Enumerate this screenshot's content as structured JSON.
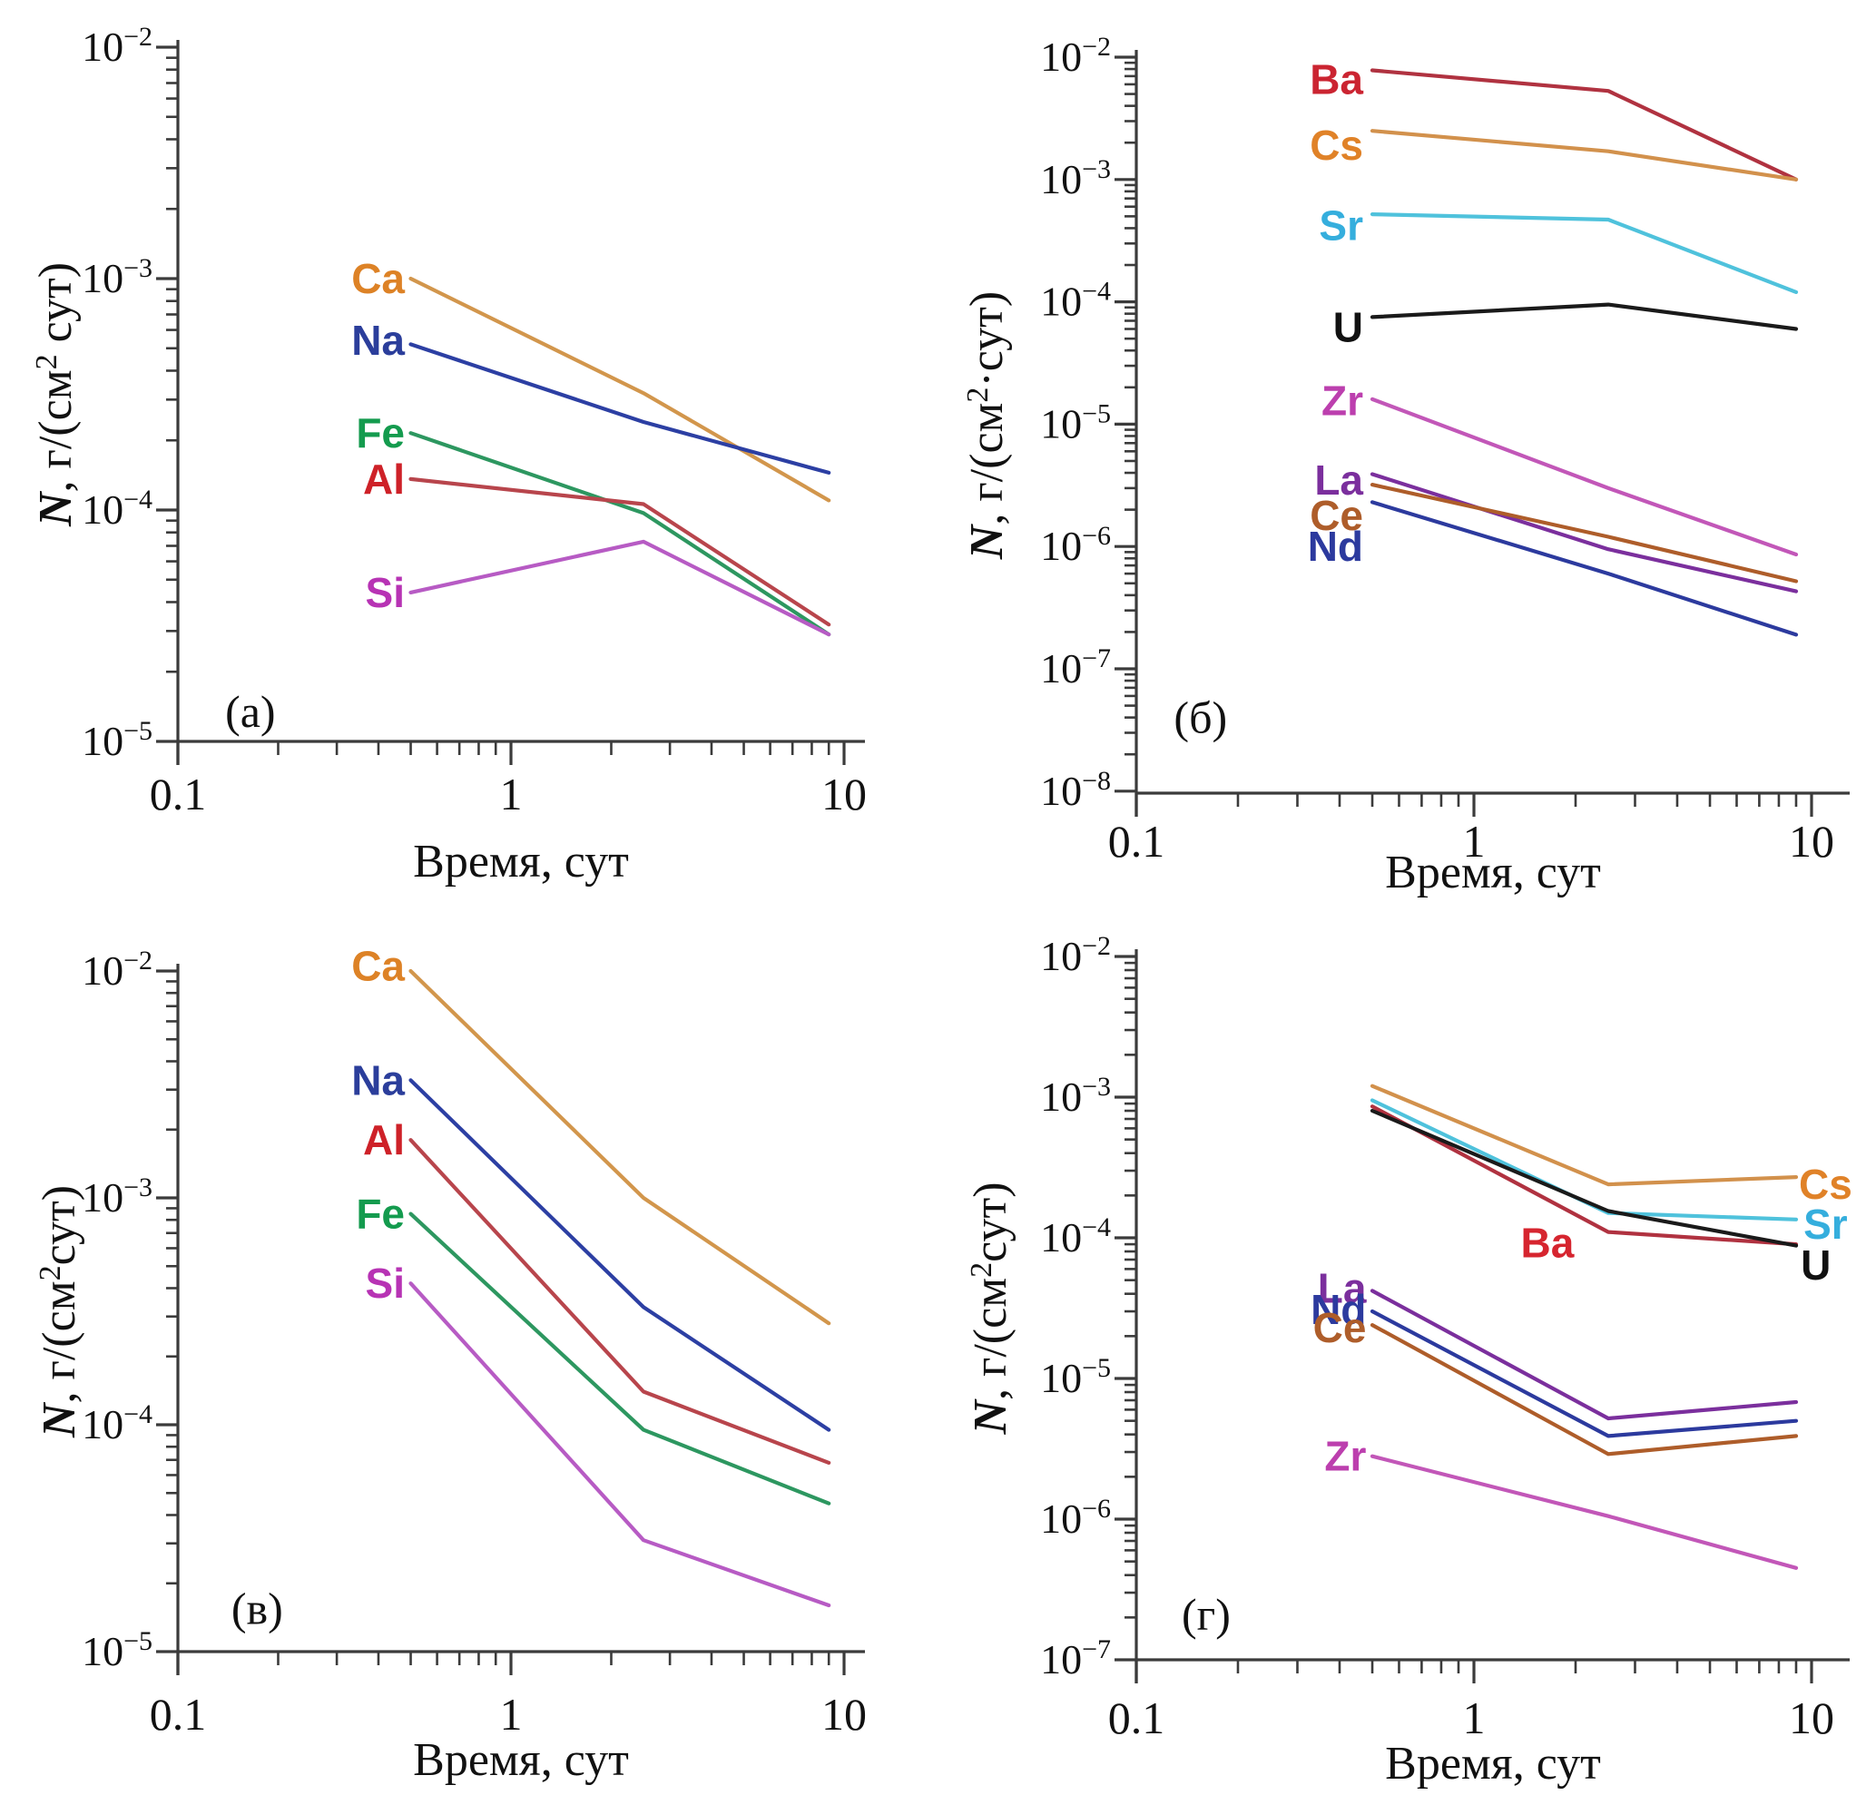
{
  "figure": {
    "background": "#ffffff"
  },
  "chart_data": [
    {
      "type": "line",
      "panel_letter": "(а)",
      "letter_pos": {
        "x": 0.165,
        "y": 1.35e-05
      },
      "xlabel": "Время, сут",
      "ylabel": {
        "lead_italic": "N",
        "mid": ", г/(см",
        "sup": "2",
        "tail": " сут)"
      },
      "x_scale": "log",
      "y_scale": "log",
      "xlim": [
        0.1,
        10
      ],
      "ylim": [
        1e-05,
        0.01
      ],
      "y_top_exp": -2,
      "x_ticks": [
        {
          "v": 0.1,
          "label": "0.1"
        },
        {
          "v": 1,
          "label": "1"
        },
        {
          "v": 10,
          "label": "10"
        }
      ],
      "y_ticks": [
        "10^−2",
        "10^−3",
        "10^−4",
        "10^−5"
      ],
      "x": [
        0.5,
        2.5,
        9
      ],
      "series": [
        {
          "name": "Ca",
          "color": "#D2964C",
          "label_color": "#DD8226",
          "values": [
            0.001,
            0.00032,
            0.00011
          ],
          "label": {
            "x": 0.48,
            "y": 0.001,
            "anchor": "end"
          }
        },
        {
          "name": "Na",
          "color": "#2C3FA3",
          "label_color": "#2B3E9B",
          "values": [
            0.00052,
            0.00024,
            0.000145
          ],
          "label": {
            "x": 0.48,
            "y": 0.00054,
            "anchor": "end"
          }
        },
        {
          "name": "Fe",
          "color": "#2D9760",
          "label_color": "#149B4E",
          "values": [
            0.000215,
            9.7e-05,
            2.9e-05
          ],
          "label": {
            "x": 0.48,
            "y": 0.000215,
            "anchor": "end"
          }
        },
        {
          "name": "Al",
          "color": "#B8454C",
          "label_color": "#CE2128",
          "values": [
            0.000136,
            0.000106,
            3.2e-05
          ],
          "label": {
            "x": 0.48,
            "y": 0.000136,
            "anchor": "end"
          }
        },
        {
          "name": "Si",
          "color": "#B75BC4",
          "label_color": "#B733B4",
          "values": [
            4.4e-05,
            7.3e-05,
            2.9e-05
          ],
          "label": {
            "x": 0.48,
            "y": 4.4e-05,
            "anchor": "end"
          }
        }
      ]
    },
    {
      "type": "line",
      "panel_letter": "(б)",
      "letter_pos": {
        "x": 0.155,
        "y": 4e-08
      },
      "xlabel": "Время, сут",
      "ylabel": {
        "lead_italic": "N",
        "mid": ", г/(см",
        "sup": "2",
        "tail": "·сут)"
      },
      "x_scale": "log",
      "y_scale": "log",
      "xlim": [
        0.1,
        10
      ],
      "ylim": [
        1e-08,
        0.01
      ],
      "y_top_exp": -2,
      "x_ticks": [
        {
          "v": 0.1,
          "label": "0.1"
        },
        {
          "v": 1,
          "label": "1"
        },
        {
          "v": 10,
          "label": "10"
        }
      ],
      "y_ticks": [
        "10^−2",
        "10^−3",
        "10^−4",
        "10^−5",
        "10^−6",
        "10^−7",
        "10^−8"
      ],
      "x": [
        0.5,
        2.5,
        9
      ],
      "series": [
        {
          "name": "Ba",
          "color": "#B03240",
          "label_color": "#CB2431",
          "values": [
            0.0078,
            0.0053,
            0.001
          ],
          "label": {
            "x": 0.47,
            "y": 0.0066,
            "anchor": "end"
          }
        },
        {
          "name": "Cs",
          "color": "#D2914C",
          "label_color": "#E08228",
          "values": [
            0.0025,
            0.0017,
            0.001
          ],
          "label": {
            "x": 0.47,
            "y": 0.0019,
            "anchor": "end"
          }
        },
        {
          "name": "Sr",
          "color": "#4FC2DC",
          "label_color": "#35AEDD",
          "values": [
            0.00052,
            0.00047,
            0.00012
          ],
          "label": {
            "x": 0.47,
            "y": 0.00042,
            "anchor": "end"
          }
        },
        {
          "name": "U",
          "color": "#1A1A1A",
          "label_color": "#111111",
          "values": [
            7.5e-05,
            9.5e-05,
            6e-05
          ],
          "label": {
            "x": 0.47,
            "y": 6.2e-05,
            "anchor": "end"
          }
        },
        {
          "name": "Zr",
          "color": "#C257B8",
          "label_color": "#BC3FAE",
          "values": [
            1.6e-05,
            3e-06,
            8.6e-07
          ],
          "label": {
            "x": 0.47,
            "y": 1.55e-05,
            "anchor": "end"
          }
        },
        {
          "name": "La",
          "color": "#7B2F9D",
          "label_color": "#7B2F9D",
          "values": [
            3.9e-06,
            9.5e-07,
            4.3e-07
          ],
          "label": {
            "x": 0.47,
            "y": 3.5e-06,
            "anchor": "end"
          }
        },
        {
          "name": "Ce",
          "color": "#AE5D2A",
          "label_color": "#AE5D2A",
          "values": [
            3.2e-06,
            1.2e-06,
            5.2e-07
          ],
          "label": {
            "x": 0.47,
            "y": 1.8e-06,
            "anchor": "end"
          }
        },
        {
          "name": "Nd",
          "color": "#2C3A9E",
          "label_color": "#2C3A9E",
          "values": [
            2.3e-06,
            6e-07,
            1.9e-07
          ],
          "label": {
            "x": 0.47,
            "y": 1e-06,
            "anchor": "end"
          }
        }
      ]
    },
    {
      "type": "line",
      "panel_letter": "(в)",
      "letter_pos": {
        "x": 0.173,
        "y": 1.55e-05
      },
      "xlabel": "Время, сут",
      "ylabel": {
        "lead_italic": "N",
        "mid": ", г/(см",
        "sup": "2",
        "tail": "сут)"
      },
      "x_scale": "log",
      "y_scale": "log",
      "xlim": [
        0.1,
        10
      ],
      "ylim": [
        1e-05,
        0.01
      ],
      "y_top_exp": -2,
      "x_ticks": [
        {
          "v": 0.1,
          "label": "0.1"
        },
        {
          "v": 1,
          "label": "1"
        },
        {
          "v": 10,
          "label": "10"
        }
      ],
      "y_ticks": [
        "10^−2",
        "10^−3",
        "10^−4",
        "10^−5"
      ],
      "x": [
        0.5,
        2.5,
        9
      ],
      "series": [
        {
          "name": "Ca",
          "color": "#D2964C",
          "label_color": "#DD8226",
          "values": [
            0.01,
            0.001,
            0.00028
          ],
          "label": {
            "x": 0.48,
            "y": 0.0105,
            "anchor": "end"
          }
        },
        {
          "name": "Na",
          "color": "#2C3FA3",
          "label_color": "#2B3E9B",
          "values": [
            0.0033,
            0.00033,
            9.5e-05
          ],
          "label": {
            "x": 0.48,
            "y": 0.0033,
            "anchor": "end"
          }
        },
        {
          "name": "Al",
          "color": "#B8454C",
          "label_color": "#CE2128",
          "values": [
            0.0018,
            0.00014,
            6.8e-05
          ],
          "label": {
            "x": 0.48,
            "y": 0.0018,
            "anchor": "end"
          }
        },
        {
          "name": "Fe",
          "color": "#2D9760",
          "label_color": "#149B4E",
          "values": [
            0.00085,
            9.5e-05,
            4.5e-05
          ],
          "label": {
            "x": 0.48,
            "y": 0.00085,
            "anchor": "end"
          }
        },
        {
          "name": "Si",
          "color": "#B75BC4",
          "label_color": "#B733B4",
          "values": [
            0.00042,
            3.1e-05,
            1.6e-05
          ],
          "label": {
            "x": 0.48,
            "y": 0.00042,
            "anchor": "end"
          }
        }
      ]
    },
    {
      "type": "line",
      "panel_letter": "(г)",
      "letter_pos": {
        "x": 0.161,
        "y": 2.1e-07
      },
      "xlabel": "Время, сут",
      "ylabel": {
        "lead_italic": "N",
        "mid": ", г/(см",
        "sup": "2",
        "tail": "сут)"
      },
      "x_scale": "log",
      "y_scale": "log",
      "xlim": [
        0.1,
        10
      ],
      "ylim": [
        1e-07,
        0.01
      ],
      "y_top_exp": -2,
      "x_ticks": [
        {
          "v": 0.1,
          "label": "0.1"
        },
        {
          "v": 1,
          "label": "1"
        },
        {
          "v": 10,
          "label": "10"
        }
      ],
      "y_ticks": [
        "10^−2",
        "10^−3",
        "10^−4",
        "10^−5",
        "10^−6",
        "10^−7"
      ],
      "x": [
        0.5,
        2.5,
        9
      ],
      "series": [
        {
          "name": "Cs",
          "color": "#D2914C",
          "label_color": "#E08228",
          "values": [
            0.0012,
            0.00024,
            0.00027
          ],
          "label": {
            "x": 11.0,
            "y": 0.00024,
            "anchor": "middle"
          }
        },
        {
          "name": "Sr",
          "color": "#4FC2DC",
          "label_color": "#35AEDD",
          "values": [
            0.00095,
            0.00015,
            0.000135
          ],
          "label": {
            "x": 11.0,
            "y": 0.000125,
            "anchor": "middle"
          }
        },
        {
          "name": "Ba",
          "color": "#B03240",
          "label_color": "#D6252F",
          "values": [
            0.00086,
            0.00011,
            9e-05
          ],
          "label": {
            "x": 1.65,
            "y": 9.2e-05,
            "anchor": "middle"
          }
        },
        {
          "name": "U",
          "color": "#1A1A1A",
          "label_color": "#111111",
          "values": [
            0.0008,
            0.000155,
            8.8e-05
          ],
          "label": {
            "x": 10.3,
            "y": 6.4e-05,
            "anchor": "middle"
          }
        },
        {
          "name": "La",
          "color": "#7B2F9D",
          "label_color": "#7B2F9D",
          "values": [
            4.2e-05,
            5.2e-06,
            6.8e-06
          ],
          "label": {
            "x": 0.48,
            "y": 4.4e-05,
            "anchor": "end"
          }
        },
        {
          "name": "Nd",
          "color": "#2C3A9E",
          "label_color": "#2C3A9E",
          "values": [
            3e-05,
            3.9e-06,
            5e-06
          ],
          "label": {
            "x": 0.48,
            "y": 3.1e-05,
            "anchor": "end"
          }
        },
        {
          "name": "Ce",
          "color": "#AE5D2A",
          "label_color": "#AE5D2A",
          "values": [
            2.4e-05,
            2.9e-06,
            3.9e-06
          ],
          "label": {
            "x": 0.48,
            "y": 2.3e-05,
            "anchor": "end"
          }
        },
        {
          "name": "Zr",
          "color": "#C257B8",
          "label_color": "#BC3FAE",
          "values": [
            2.8e-06,
            1.05e-06,
            4.5e-07
          ],
          "label": {
            "x": 0.48,
            "y": 2.8e-06,
            "anchor": "end"
          }
        }
      ]
    }
  ]
}
